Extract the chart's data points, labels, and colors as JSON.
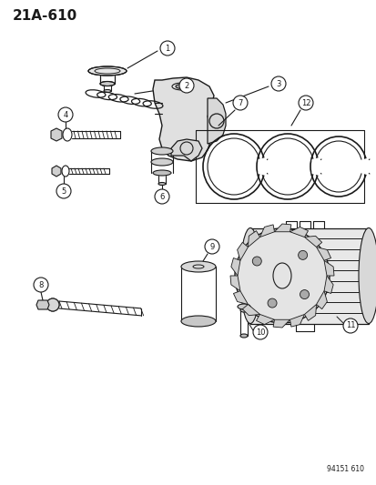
{
  "title": "21A-610",
  "background_color": "#ffffff",
  "line_color": "#1a1a1a",
  "watermark": "94151 610",
  "fig_width": 4.14,
  "fig_height": 5.33,
  "dpi": 100
}
